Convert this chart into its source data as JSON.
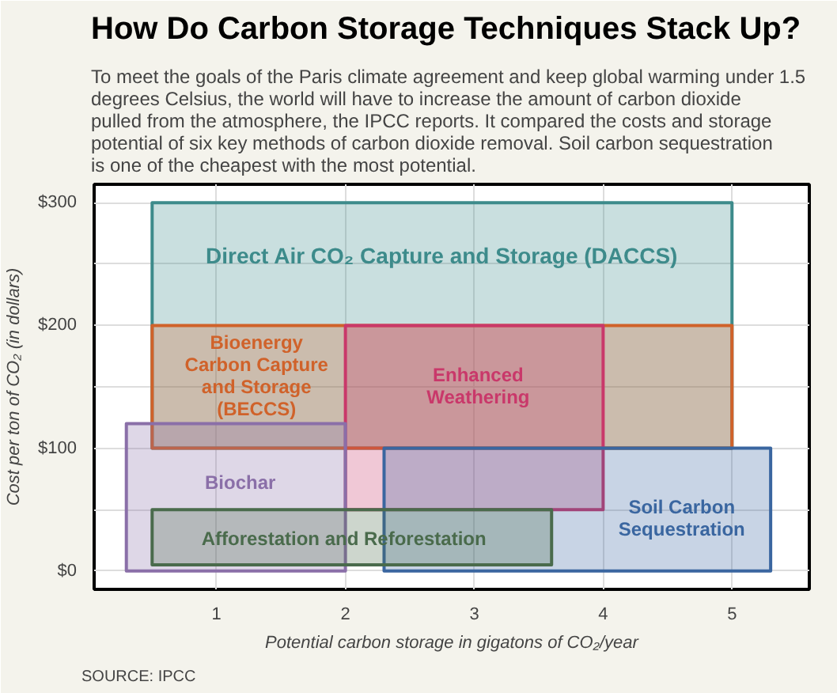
{
  "chart_data": {
    "type": "line",
    "title": "How Do Carbon Storage Techniques Stack Up?",
    "subtitle": "To meet the goals of the Paris climate agreement and keep global warming under 1.5 degrees Celsius, the world will have to increase the amount of carbon dioxide pulled from the atmosphere, the IPCC reports. It compared the costs and storage potential of six key methods of carbon dioxide removal. Soil carbon sequestration is one of the cheapest with the most potential.",
    "xlabel": "Potential carbon storage in gigatons of CO₂/year",
    "ylabel": "Cost per ton of CO₂ (in dollars)",
    "annotations": [
      "SOURCE: IPCC"
    ],
    "xlim": [
      0.05,
      5.6
    ],
    "ylim": [
      -15,
      315
    ],
    "xticks": [
      1,
      2,
      3,
      4,
      5
    ],
    "yticks": [
      {
        "value": 0,
        "label": "$0"
      },
      {
        "value": 50,
        "label": null
      },
      {
        "value": 100,
        "label": "$100"
      },
      {
        "value": 150,
        "label": null
      },
      {
        "value": 200,
        "label": "$200"
      },
      {
        "value": 250,
        "label": null
      },
      {
        "value": 300,
        "label": "$300"
      }
    ],
    "grid": true,
    "series": [
      {
        "name": "Direct Air CO₂ Capture and Storage (DACCS)",
        "color": "#3d8b8b",
        "x": [
          0.5,
          5
        ],
        "values": [
          null,
          null
        ],
        "lower": [
          100,
          100
        ],
        "upper": [
          300,
          300
        ]
      },
      {
        "name": "Bioenergy\nCarbon Capture\nand Storage\n(BECCS)",
        "color": "#d0622a",
        "x": [
          0.5,
          5
        ],
        "values": [
          null,
          null
        ],
        "lower": [
          100,
          100
        ],
        "upper": [
          200,
          200
        ]
      },
      {
        "name": "Enhanced\nWeathering",
        "color": "#c9386a",
        "x": [
          2,
          4
        ],
        "values": [
          null,
          null
        ],
        "lower": [
          50,
          50
        ],
        "upper": [
          200,
          200
        ]
      },
      {
        "name": "Biochar",
        "color": "#8a6fa8",
        "x": [
          0.3,
          2
        ],
        "values": [
          null,
          null
        ],
        "lower": [
          0,
          0
        ],
        "upper": [
          120,
          120
        ]
      },
      {
        "name": "Soil Carbon\nSequestration",
        "color": "#3a66a0",
        "x": [
          2.3,
          5.3
        ],
        "values": [
          null,
          null
        ],
        "lower": [
          0,
          0
        ],
        "upper": [
          100,
          100
        ]
      },
      {
        "name": "Afforestation and Reforestation",
        "color": "#4a6b4c",
        "x": [
          0.5,
          3.6
        ],
        "values": [
          null,
          null
        ],
        "lower": [
          5,
          5
        ],
        "upper": [
          50,
          50
        ]
      }
    ]
  }
}
